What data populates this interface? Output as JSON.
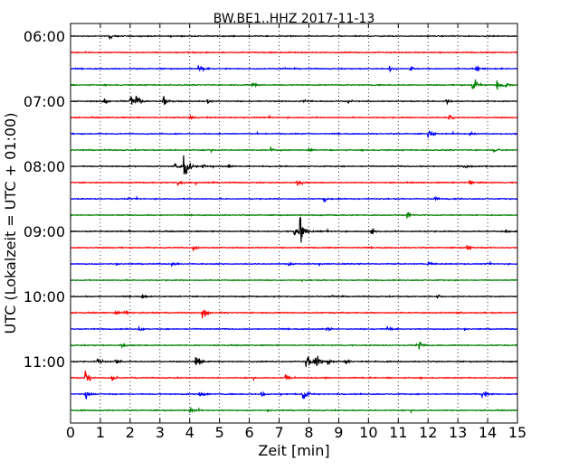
{
  "chart_data": {
    "type": "line",
    "title": "BW.BE1..HHZ 2017-11-13",
    "xlabel": "Zeit  [min]",
    "ylabel": "UTC (Lokalzeit = UTC + 01:00)",
    "xlim": [
      0,
      15
    ],
    "x_ticks": [
      "0",
      "1",
      "2",
      "3",
      "4",
      "5",
      "6",
      "7",
      "8",
      "9",
      "10",
      "11",
      "12",
      "13",
      "14",
      "15"
    ],
    "y_tick_labels": [
      {
        "trace": 0,
        "label": "06:00"
      },
      {
        "trace": 4,
        "label": "07:00"
      },
      {
        "trace": 8,
        "label": "08:00"
      },
      {
        "trace": 12,
        "label": "09:00"
      },
      {
        "trace": 16,
        "label": "10:00"
      },
      {
        "trace": 20,
        "label": "11:00"
      }
    ],
    "grid": "vertical dotted",
    "trace_minutes": 15,
    "series_colors": [
      "#000000",
      "#ff0000",
      "#0000ff",
      "#008000"
    ],
    "traces": [
      {
        "start": "06:00",
        "events": [
          [
            1.3,
            0.3
          ]
        ]
      },
      {
        "start": "06:15",
        "events": []
      },
      {
        "start": "06:30",
        "events": [
          [
            4.3,
            0.6
          ],
          [
            10.7,
            0.3
          ],
          [
            11.4,
            0.3
          ],
          [
            13.6,
            0.3
          ]
        ]
      },
      {
        "start": "06:45",
        "events": [
          [
            6.1,
            0.4
          ],
          [
            13.5,
            1.0
          ],
          [
            14.3,
            0.7
          ],
          [
            14.6,
            0.4
          ]
        ]
      },
      {
        "start": "07:00",
        "events": [
          [
            1.1,
            0.4
          ],
          [
            2.0,
            1.0
          ],
          [
            2.2,
            0.7
          ],
          [
            3.1,
            0.8
          ],
          [
            4.6,
            0.3
          ],
          [
            7.8,
            0.3
          ],
          [
            9.3,
            0.3
          ],
          [
            12.6,
            0.3
          ]
        ]
      },
      {
        "start": "07:15",
        "events": [
          [
            4.0,
            0.3
          ],
          [
            12.7,
            0.3
          ]
        ]
      },
      {
        "start": "07:30",
        "events": [
          [
            12.0,
            0.5
          ],
          [
            13.4,
            0.3
          ]
        ]
      },
      {
        "start": "07:45",
        "events": [
          [
            6.7,
            0.4
          ],
          [
            8.0,
            0.3
          ],
          [
            14.2,
            0.3
          ]
        ]
      },
      {
        "start": "08:00",
        "events": [
          [
            3.8,
            2.0
          ],
          [
            3.5,
            0.4
          ],
          [
            4.4,
            0.4
          ],
          [
            5.3,
            0.3
          ],
          [
            13.2,
            0.3
          ]
        ]
      },
      {
        "start": "08:15",
        "events": [
          [
            3.6,
            0.3
          ],
          [
            7.6,
            0.5
          ],
          [
            13.4,
            0.3
          ]
        ]
      },
      {
        "start": "08:30",
        "events": [
          [
            8.5,
            0.3
          ],
          [
            12.2,
            0.3
          ]
        ]
      },
      {
        "start": "08:45",
        "events": [
          [
            11.3,
            0.4
          ]
        ]
      },
      {
        "start": "09:00",
        "events": [
          [
            7.7,
            1.8
          ],
          [
            7.5,
            0.5
          ],
          [
            10.1,
            0.6
          ],
          [
            14.6,
            0.3
          ]
        ]
      },
      {
        "start": "09:15",
        "events": [
          [
            4.1,
            0.3
          ],
          [
            13.3,
            0.3
          ]
        ]
      },
      {
        "start": "09:30",
        "events": [
          [
            3.4,
            0.3
          ],
          [
            7.3,
            0.3
          ],
          [
            12.0,
            0.3
          ]
        ]
      },
      {
        "start": "09:45",
        "events": []
      },
      {
        "start": "10:00",
        "events": [
          [
            2.4,
            0.3
          ],
          [
            12.3,
            0.3
          ]
        ]
      },
      {
        "start": "10:15",
        "events": [
          [
            1.5,
            0.4
          ],
          [
            1.8,
            0.3
          ],
          [
            4.4,
            0.9
          ],
          [
            13.0,
            0.3
          ]
        ]
      },
      {
        "start": "10:30",
        "events": [
          [
            2.3,
            0.3
          ],
          [
            8.6,
            0.3
          ],
          [
            10.6,
            0.3
          ]
        ]
      },
      {
        "start": "10:45",
        "events": [
          [
            1.7,
            0.3
          ],
          [
            11.7,
            0.4
          ]
        ]
      },
      {
        "start": "11:00",
        "events": [
          [
            0.9,
            0.4
          ],
          [
            1.5,
            0.4
          ],
          [
            4.2,
            0.8
          ],
          [
            7.9,
            0.9
          ],
          [
            8.2,
            1.3
          ],
          [
            8.6,
            0.5
          ],
          [
            9.2,
            0.4
          ]
        ]
      },
      {
        "start": "11:15",
        "events": [
          [
            0.5,
            1.0
          ],
          [
            1.4,
            0.4
          ],
          [
            7.2,
            0.5
          ]
        ]
      },
      {
        "start": "11:30",
        "events": [
          [
            0.5,
            0.5
          ],
          [
            4.3,
            0.5
          ],
          [
            7.8,
            0.8
          ],
          [
            13.8,
            0.7
          ],
          [
            6.4,
            0.3
          ]
        ]
      },
      {
        "start": "11:45",
        "events": [
          [
            4.0,
            0.3
          ]
        ]
      }
    ]
  }
}
